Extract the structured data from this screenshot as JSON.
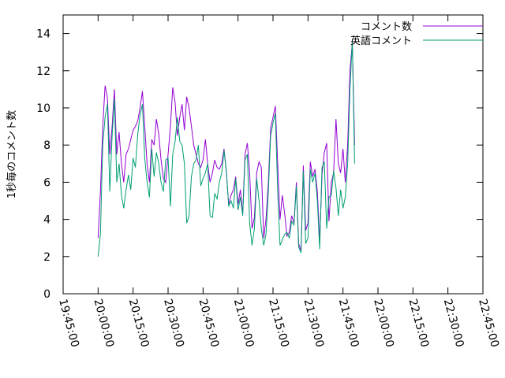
{
  "chart_data": {
    "type": "line",
    "title": "",
    "xlabel": "",
    "ylabel": "1秒毎のコメント数",
    "xlim": [
      "19:45:00",
      "22:45:00"
    ],
    "ylim": [
      0,
      15
    ],
    "x_ticks": [
      "19:45:00",
      "20:00:00",
      "20:15:00",
      "20:30:00",
      "20:45:00",
      "21:00:00",
      "21:15:00",
      "21:30:00",
      "21:45:00",
      "22:00:00",
      "22:15:00",
      "22:30:00",
      "22:45:00"
    ],
    "y_ticks": [
      0,
      2,
      4,
      6,
      8,
      10,
      12,
      14
    ],
    "grid": false,
    "legend_position": "top-right",
    "series": [
      {
        "name": "コメント数",
        "color": "#9400d3",
        "points": [
          [
            "20:00:00",
            3.0
          ],
          [
            "20:01:00",
            5.5
          ],
          [
            "20:02:00",
            9.0
          ],
          [
            "20:03:00",
            11.2
          ],
          [
            "20:04:00",
            10.5
          ],
          [
            "20:05:00",
            7.5
          ],
          [
            "20:06:00",
            9.0
          ],
          [
            "20:07:00",
            11.0
          ],
          [
            "20:08:00",
            7.5
          ],
          [
            "20:09:00",
            8.7
          ],
          [
            "20:10:00",
            7.0
          ],
          [
            "20:11:00",
            6.0
          ],
          [
            "20:12:00",
            7.5
          ],
          [
            "20:13:00",
            7.8
          ],
          [
            "20:14:00",
            8.3
          ],
          [
            "20:15:00",
            8.8
          ],
          [
            "20:16:00",
            9.0
          ],
          [
            "20:17:00",
            9.3
          ],
          [
            "20:18:00",
            10.0
          ],
          [
            "20:19:00",
            10.9
          ],
          [
            "20:20:00",
            9.0
          ],
          [
            "20:21:00",
            7.0
          ],
          [
            "20:22:00",
            6.0
          ],
          [
            "20:23:00",
            8.3
          ],
          [
            "20:24:00",
            8.0
          ],
          [
            "20:25:00",
            9.4
          ],
          [
            "20:26:00",
            8.6
          ],
          [
            "20:27:00",
            7.2
          ],
          [
            "20:28:00",
            6.2
          ],
          [
            "20:29:00",
            6.0
          ],
          [
            "20:30:00",
            7.5
          ],
          [
            "20:31:00",
            9.0
          ],
          [
            "20:32:00",
            11.1
          ],
          [
            "20:33:00",
            10.3
          ],
          [
            "20:34:00",
            8.5
          ],
          [
            "20:35:00",
            9.5
          ],
          [
            "20:36:00",
            10.2
          ],
          [
            "20:37:00",
            8.8
          ],
          [
            "20:38:00",
            10.6
          ],
          [
            "20:39:00",
            10.0
          ],
          [
            "20:40:00",
            9.0
          ],
          [
            "20:41:00",
            8.0
          ],
          [
            "20:42:00",
            7.5
          ],
          [
            "20:43:00",
            7.0
          ],
          [
            "20:44:00",
            6.8
          ],
          [
            "20:45:00",
            7.2
          ],
          [
            "20:46:00",
            8.3
          ],
          [
            "20:47:00",
            7.0
          ],
          [
            "20:48:00",
            6.0
          ],
          [
            "20:49:00",
            6.5
          ],
          [
            "20:50:00",
            7.2
          ],
          [
            "20:51:00",
            6.8
          ],
          [
            "20:52:00",
            6.7
          ],
          [
            "20:53:00",
            7.0
          ],
          [
            "20:54:00",
            7.8
          ],
          [
            "20:55:00",
            6.5
          ],
          [
            "20:56:00",
            4.8
          ],
          [
            "20:57:00",
            5.3
          ],
          [
            "20:58:00",
            5.6
          ],
          [
            "20:59:00",
            6.3
          ],
          [
            "21:00:00",
            4.8
          ],
          [
            "21:01:00",
            5.6
          ],
          [
            "21:02:00",
            4.3
          ],
          [
            "21:03:00",
            7.5
          ],
          [
            "21:04:00",
            8.1
          ],
          [
            "21:05:00",
            6.5
          ],
          [
            "21:06:00",
            3.5
          ],
          [
            "21:07:00",
            4.1
          ],
          [
            "21:08:00",
            6.5
          ],
          [
            "21:09:00",
            7.1
          ],
          [
            "21:10:00",
            6.8
          ],
          [
            "21:11:00",
            3.0
          ],
          [
            "21:12:00",
            4.0
          ],
          [
            "21:13:00",
            6.0
          ],
          [
            "21:14:00",
            8.9
          ],
          [
            "21:15:00",
            9.5
          ],
          [
            "21:16:00",
            10.1
          ],
          [
            "21:17:00",
            7.0
          ],
          [
            "21:18:00",
            4.0
          ],
          [
            "21:19:00",
            5.3
          ],
          [
            "21:20:00",
            4.3
          ],
          [
            "21:21:00",
            3.1
          ],
          [
            "21:22:00",
            3.3
          ],
          [
            "21:23:00",
            4.2
          ],
          [
            "21:24:00",
            3.8
          ],
          [
            "21:25:00",
            6.0
          ],
          [
            "21:26:00",
            2.7
          ],
          [
            "21:27:00",
            2.3
          ],
          [
            "21:28:00",
            6.9
          ],
          [
            "21:29:00",
            3.4
          ],
          [
            "21:30:00",
            3.8
          ],
          [
            "21:31:00",
            7.1
          ],
          [
            "21:32:00",
            6.3
          ],
          [
            "21:33:00",
            6.7
          ],
          [
            "21:34:00",
            5.5
          ],
          [
            "21:35:00",
            2.8
          ],
          [
            "21:36:00",
            6.4
          ],
          [
            "21:37:00",
            7.6
          ],
          [
            "21:38:00",
            8.1
          ],
          [
            "21:39:00",
            3.9
          ],
          [
            "21:40:00",
            6.0
          ],
          [
            "21:41:00",
            6.5
          ],
          [
            "21:42:00",
            9.4
          ],
          [
            "21:43:00",
            7.0
          ],
          [
            "21:44:00",
            6.5
          ],
          [
            "21:45:00",
            7.8
          ],
          [
            "21:46:00",
            6.0
          ],
          [
            "21:47:00",
            8.0
          ],
          [
            "21:48:00",
            12.0
          ],
          [
            "21:49:00",
            13.5
          ],
          [
            "21:50:00",
            8.0
          ]
        ]
      },
      {
        "name": "英語コメント",
        "color": "#009e73",
        "points": [
          [
            "20:00:00",
            2.0
          ],
          [
            "20:01:00",
            3.2
          ],
          [
            "20:02:00",
            8.0
          ],
          [
            "20:03:00",
            9.5
          ],
          [
            "20:04:00",
            10.2
          ],
          [
            "20:05:00",
            5.5
          ],
          [
            "20:06:00",
            8.5
          ],
          [
            "20:07:00",
            10.5
          ],
          [
            "20:08:00",
            6.0
          ],
          [
            "20:09:00",
            7.0
          ],
          [
            "20:10:00",
            5.3
          ],
          [
            "20:11:00",
            4.6
          ],
          [
            "20:12:00",
            5.6
          ],
          [
            "20:13:00",
            6.4
          ],
          [
            "20:14:00",
            5.6
          ],
          [
            "20:15:00",
            7.3
          ],
          [
            "20:16:00",
            6.8
          ],
          [
            "20:17:00",
            8.6
          ],
          [
            "20:18:00",
            9.6
          ],
          [
            "20:19:00",
            10.2
          ],
          [
            "20:20:00",
            7.3
          ],
          [
            "20:21:00",
            6.0
          ],
          [
            "20:22:00",
            5.2
          ],
          [
            "20:23:00",
            7.8
          ],
          [
            "20:24:00",
            6.3
          ],
          [
            "20:25:00",
            7.6
          ],
          [
            "20:26:00",
            7.0
          ],
          [
            "20:27:00",
            6.0
          ],
          [
            "20:28:00",
            5.5
          ],
          [
            "20:29:00",
            7.2
          ],
          [
            "20:30:00",
            7.3
          ],
          [
            "20:31:00",
            4.7
          ],
          [
            "20:32:00",
            7.5
          ],
          [
            "20:33:00",
            8.2
          ],
          [
            "20:34:00",
            9.5
          ],
          [
            "20:35:00",
            8.2
          ],
          [
            "20:36:00",
            8.0
          ],
          [
            "20:37:00",
            7.0
          ],
          [
            "20:38:00",
            3.8
          ],
          [
            "20:39:00",
            4.2
          ],
          [
            "20:40:00",
            6.3
          ],
          [
            "20:41:00",
            7.0
          ],
          [
            "20:42:00",
            7.2
          ],
          [
            "20:43:00",
            8.0
          ],
          [
            "20:44:00",
            5.8
          ],
          [
            "20:45:00",
            6.2
          ],
          [
            "20:46:00",
            6.5
          ],
          [
            "20:47:00",
            7.0
          ],
          [
            "20:48:00",
            4.2
          ],
          [
            "20:49:00",
            4.1
          ],
          [
            "20:50:00",
            5.4
          ],
          [
            "20:51:00",
            5.1
          ],
          [
            "20:52:00",
            6.0
          ],
          [
            "20:53:00",
            6.5
          ],
          [
            "20:54:00",
            7.7
          ],
          [
            "20:55:00",
            6.6
          ],
          [
            "20:56:00",
            4.7
          ],
          [
            "20:57:00",
            5.0
          ],
          [
            "20:58:00",
            4.6
          ],
          [
            "20:59:00",
            6.2
          ],
          [
            "21:00:00",
            4.5
          ],
          [
            "21:01:00",
            5.2
          ],
          [
            "21:02:00",
            4.2
          ],
          [
            "21:03:00",
            7.2
          ],
          [
            "21:04:00",
            7.5
          ],
          [
            "21:05:00",
            3.8
          ],
          [
            "21:06:00",
            2.6
          ],
          [
            "21:07:00",
            3.5
          ],
          [
            "21:08:00",
            6.2
          ],
          [
            "21:09:00",
            5.0
          ],
          [
            "21:10:00",
            3.5
          ],
          [
            "21:11:00",
            2.6
          ],
          [
            "21:12:00",
            3.2
          ],
          [
            "21:13:00",
            5.5
          ],
          [
            "21:14:00",
            8.5
          ],
          [
            "21:15:00",
            9.2
          ],
          [
            "21:16:00",
            9.7
          ],
          [
            "21:17:00",
            5.5
          ],
          [
            "21:18:00",
            2.6
          ],
          [
            "21:19:00",
            2.9
          ],
          [
            "21:20:00",
            3.2
          ],
          [
            "21:21:00",
            3.3
          ],
          [
            "21:22:00",
            3.0
          ],
          [
            "21:23:00",
            3.9
          ],
          [
            "21:24:00",
            3.7
          ],
          [
            "21:25:00",
            5.8
          ],
          [
            "21:26:00",
            2.5
          ],
          [
            "21:27:00",
            2.2
          ],
          [
            "21:28:00",
            6.6
          ],
          [
            "21:29:00",
            2.7
          ],
          [
            "21:30:00",
            3.0
          ],
          [
            "21:31:00",
            6.7
          ],
          [
            "21:32:00",
            6.0
          ],
          [
            "21:33:00",
            6.5
          ],
          [
            "21:34:00",
            5.0
          ],
          [
            "21:35:00",
            2.4
          ],
          [
            "21:36:00",
            6.8
          ],
          [
            "21:37:00",
            7.1
          ],
          [
            "21:38:00",
            3.5
          ],
          [
            "21:39:00",
            5.2
          ],
          [
            "21:40:00",
            5.3
          ],
          [
            "21:41:00",
            6.6
          ],
          [
            "21:42:00",
            5.7
          ],
          [
            "21:43:00",
            4.2
          ],
          [
            "21:44:00",
            5.6
          ],
          [
            "21:45:00",
            4.6
          ],
          [
            "21:46:00",
            5.2
          ],
          [
            "21:47:00",
            7.0
          ],
          [
            "21:48:00",
            11.0
          ],
          [
            "21:49:00",
            13.6
          ],
          [
            "21:50:00",
            7.0
          ]
        ]
      }
    ]
  }
}
